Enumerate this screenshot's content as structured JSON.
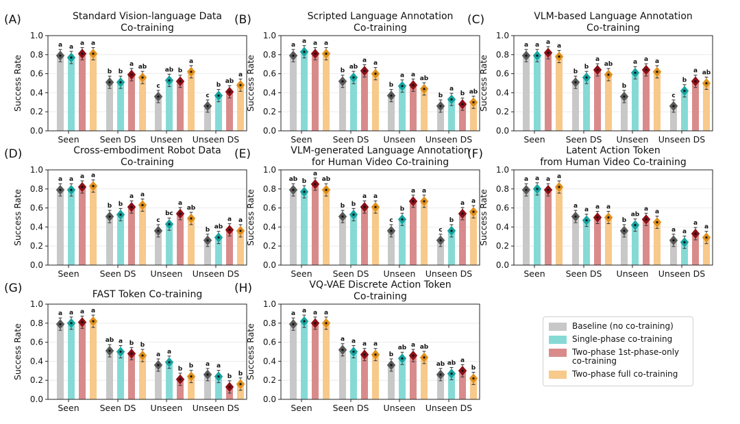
{
  "chart_data": {
    "type": "bar",
    "categories": [
      "Seen",
      "Seen DS",
      "Unseen",
      "Unseen DS"
    ],
    "ylabel": "Success Rate",
    "ylim": [
      0,
      1.0
    ],
    "yticks": [
      "0.0",
      "0.2",
      "0.4",
      "0.6",
      "0.8",
      "1.0"
    ],
    "grid": true,
    "series_names": [
      "Baseline (no co-training)",
      "Single-phase co-training",
      "Two-phase 1st-phase-only co-training",
      "Two-phase full co-training"
    ],
    "series_colors": [
      "#c8c8c8",
      "#86dad6",
      "#d98b8b",
      "#f7c98b"
    ],
    "marker_colors": [
      "#5a5a5a",
      "#17a3a0",
      "#8b0f17",
      "#e08f1c"
    ],
    "panels": [
      {
        "label": "(A)",
        "title": [
          "Standard Vision-language Data",
          "Co-training"
        ],
        "values": [
          [
            0.79,
            0.77,
            0.81,
            0.81
          ],
          [
            0.51,
            0.51,
            0.59,
            0.56
          ],
          [
            0.36,
            0.53,
            0.52,
            0.62
          ],
          [
            0.26,
            0.37,
            0.41,
            0.48
          ]
        ],
        "letters": [
          [
            "a",
            "a",
            "a",
            "a"
          ],
          [
            "b",
            "b",
            "a",
            "ab"
          ],
          [
            "c",
            "ab",
            "b",
            "a"
          ],
          [
            "c",
            "b",
            "ab",
            "a"
          ]
        ]
      },
      {
        "label": "(B)",
        "title": [
          "Scripted Language Annotation",
          "Co-training"
        ],
        "values": [
          [
            0.79,
            0.83,
            0.81,
            0.81
          ],
          [
            0.52,
            0.56,
            0.63,
            0.6
          ],
          [
            0.37,
            0.47,
            0.48,
            0.44
          ],
          [
            0.26,
            0.33,
            0.28,
            0.3
          ]
        ],
        "letters": [
          [
            "a",
            "a",
            "a",
            "a"
          ],
          [
            "b",
            "ab",
            "a",
            "a"
          ],
          [
            "b",
            "a",
            "a",
            "ab"
          ],
          [
            "b",
            "a",
            "b",
            "ab"
          ]
        ]
      },
      {
        "label": "(C)",
        "title": [
          "VLM-based Language Annotation",
          "Co-training"
        ],
        "values": [
          [
            0.79,
            0.79,
            0.82,
            0.78
          ],
          [
            0.51,
            0.56,
            0.64,
            0.59
          ],
          [
            0.36,
            0.61,
            0.64,
            0.62
          ],
          [
            0.26,
            0.42,
            0.52,
            0.5
          ]
        ],
        "letters": [
          [
            "a",
            "a",
            "a",
            "a"
          ],
          [
            "b",
            "b",
            "a",
            "ab"
          ],
          [
            "b",
            "a",
            "a",
            "a"
          ],
          [
            "c",
            "b",
            "a",
            "ab"
          ]
        ]
      },
      {
        "label": "(D)",
        "title": [
          "Cross-embodiment Robot Data",
          "Co-training"
        ],
        "values": [
          [
            0.79,
            0.79,
            0.82,
            0.83
          ],
          [
            0.51,
            0.53,
            0.61,
            0.63
          ],
          [
            0.36,
            0.43,
            0.54,
            0.49
          ],
          [
            0.26,
            0.29,
            0.37,
            0.36
          ]
        ],
        "letters": [
          [
            "a",
            "a",
            "a",
            "a"
          ],
          [
            "b",
            "b",
            "a",
            "a"
          ],
          [
            "c",
            "bc",
            "a",
            "ab"
          ],
          [
            "b",
            "ab",
            "a",
            "a"
          ]
        ]
      },
      {
        "label": "(E)",
        "title": [
          "VLM-generated Language Annotation",
          "for Human Video Co-training"
        ],
        "values": [
          [
            0.79,
            0.77,
            0.85,
            0.79
          ],
          [
            0.51,
            0.53,
            0.61,
            0.61
          ],
          [
            0.36,
            0.48,
            0.67,
            0.67
          ],
          [
            0.26,
            0.36,
            0.54,
            0.56
          ]
        ],
        "letters": [
          [
            "ab",
            "b",
            "a",
            "ab"
          ],
          [
            "b",
            "b",
            "a",
            "a"
          ],
          [
            "c",
            "b",
            "a",
            "a"
          ],
          [
            "c",
            "b",
            "a",
            "a"
          ]
        ]
      },
      {
        "label": "(F)",
        "title": [
          "Latent Action Token",
          "from Human Video Co-training"
        ],
        "values": [
          [
            0.79,
            0.8,
            0.79,
            0.82
          ],
          [
            0.51,
            0.47,
            0.5,
            0.5
          ],
          [
            0.36,
            0.42,
            0.48,
            0.45
          ],
          [
            0.26,
            0.24,
            0.33,
            0.29
          ]
        ],
        "letters": [
          [
            "a",
            "a",
            "a",
            "a"
          ],
          [
            "a",
            "a",
            "a",
            "a"
          ],
          [
            "b",
            "ab",
            "a",
            "a"
          ],
          [
            "a",
            "a",
            "a",
            "a"
          ]
        ]
      },
      {
        "label": "(G)",
        "title": [
          "FAST Token Co-training"
        ],
        "values": [
          [
            0.79,
            0.8,
            0.81,
            0.82
          ],
          [
            0.51,
            0.5,
            0.48,
            0.46
          ],
          [
            0.36,
            0.39,
            0.21,
            0.24
          ],
          [
            0.26,
            0.24,
            0.13,
            0.16
          ]
        ],
        "letters": [
          [
            "a",
            "a",
            "a",
            "a"
          ],
          [
            "ab",
            "a",
            "b",
            "b"
          ],
          [
            "a",
            "a",
            "b",
            "b"
          ],
          [
            "a",
            "a",
            "b",
            "b"
          ]
        ]
      },
      {
        "label": "(H)",
        "title": [
          "VQ-VAE Discrete Action Token",
          "Co-training"
        ],
        "values": [
          [
            0.79,
            0.82,
            0.8,
            0.8
          ],
          [
            0.52,
            0.5,
            0.47,
            0.47
          ],
          [
            0.36,
            0.43,
            0.46,
            0.44
          ],
          [
            0.26,
            0.27,
            0.3,
            0.22
          ]
        ],
        "letters": [
          [
            "a",
            "a",
            "a",
            "a"
          ],
          [
            "a",
            "a",
            "a",
            "a"
          ],
          [
            "b",
            "ab",
            "a",
            "ab"
          ],
          [
            "ab",
            "ab",
            "a",
            "b"
          ]
        ]
      }
    ]
  },
  "legend": {
    "items": [
      {
        "label": "Baseline (no co-training)",
        "color": "#c8c8c8"
      },
      {
        "label": "Single-phase co-training",
        "color": "#86dad6"
      },
      {
        "label": "Two-phase 1st-phase-only co-training",
        "color": "#d98b8b"
      },
      {
        "label": "Two-phase full co-training",
        "color": "#f7c98b"
      }
    ]
  }
}
